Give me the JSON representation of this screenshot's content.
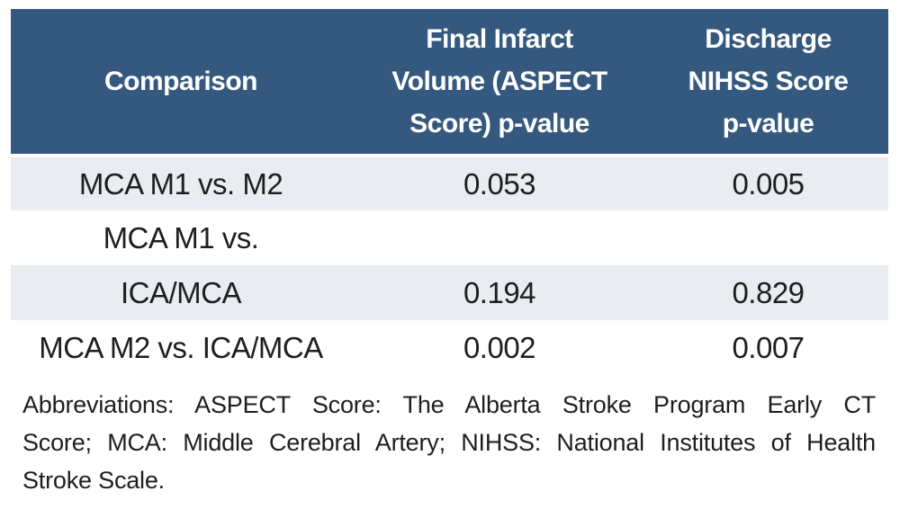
{
  "table": {
    "header": {
      "comparison": "Comparison",
      "final_infarct_lines": [
        "Final Infarct",
        "Volume (ASPECT",
        "Score) p-value"
      ],
      "discharge_lines": [
        "Discharge",
        "NIHSS Score",
        "p-value"
      ]
    },
    "rows": [
      {
        "comparison": "MCA M1 vs. M2",
        "final_infarct": "0.053",
        "discharge": "0.005"
      },
      {
        "comparison": "MCA M1 vs.",
        "final_infarct": "",
        "discharge": ""
      },
      {
        "comparison": "ICA/MCA",
        "final_infarct": "0.194",
        "discharge": "0.829"
      },
      {
        "comparison": "MCA M2 vs. ICA/MCA",
        "final_infarct": "0.002",
        "discharge": "0.007"
      }
    ]
  },
  "footnote": {
    "lines": [
      "Abbreviations: ASPECT Score: The Alberta Stroke Program Early CT",
      "Score; MCA: Middle Cerebral Artery; NIHSS: National Institutes of Health",
      "Stroke Scale."
    ]
  },
  "colors": {
    "header_bg": "#35597E",
    "row_alt_bg": "#E9ECF0",
    "text": "#1E1E1E",
    "header_text": "#FFFFFF",
    "page_bg": "#FFFFFF"
  }
}
